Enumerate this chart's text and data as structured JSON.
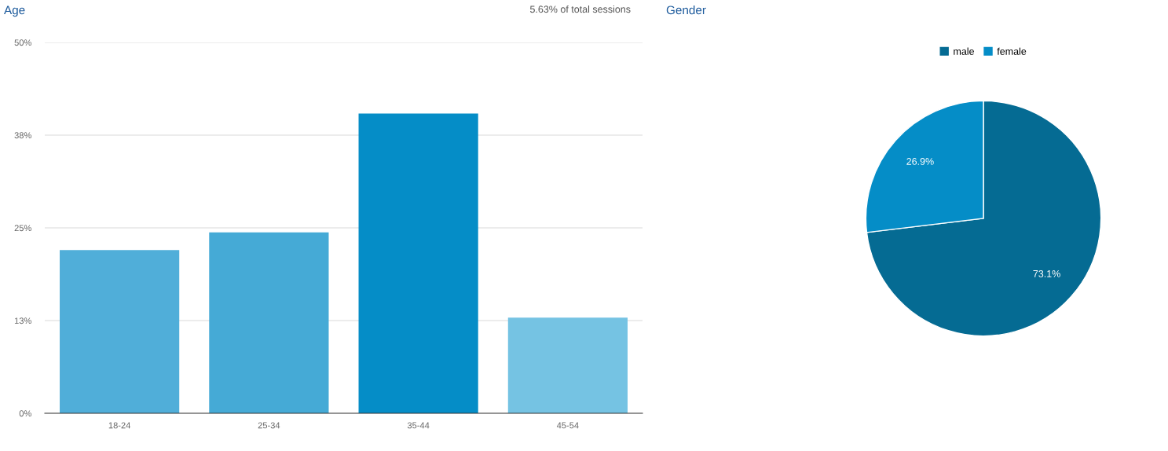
{
  "chart_data": [
    {
      "type": "bar",
      "title": "Age",
      "categories": [
        "18-24",
        "25-34",
        "35-44",
        "45-54"
      ],
      "values": [
        22.0,
        24.4,
        40.4,
        12.9
      ],
      "colors": [
        "#50aed9",
        "#45aad6",
        "#058dc7",
        "#75c3e3"
      ],
      "ylim": [
        0,
        50
      ],
      "yticks": [
        {
          "value": 0,
          "label": "0%"
        },
        {
          "value": 12.5,
          "label": "13%"
        },
        {
          "value": 25,
          "label": "25%"
        },
        {
          "value": 37.5,
          "label": "38%"
        },
        {
          "value": 50,
          "label": "50%"
        }
      ],
      "grid": "y",
      "annotations": [
        "5.63% of total sessions"
      ]
    },
    {
      "type": "pie",
      "title": "Gender",
      "categories": [
        "male",
        "female"
      ],
      "values": [
        73.1,
        26.9
      ],
      "colors": [
        "#056b93",
        "#058dc7"
      ],
      "value_labels": [
        "73.1%",
        "26.9%"
      ],
      "legend": "top"
    }
  ]
}
